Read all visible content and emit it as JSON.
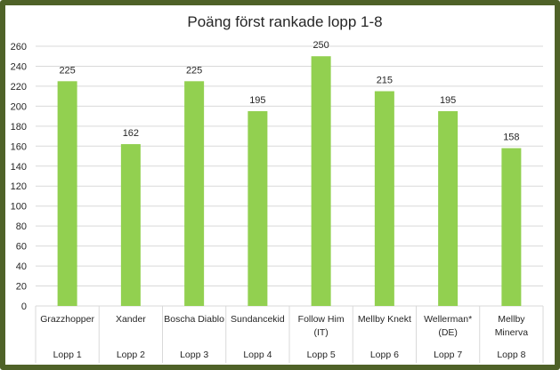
{
  "chart_data": {
    "type": "bar",
    "title": "Poäng först rankade lopp 1-8",
    "categories": [
      {
        "name": [
          "Grazzhopper"
        ],
        "group": "Lopp 1"
      },
      {
        "name": [
          "Xander"
        ],
        "group": "Lopp 2"
      },
      {
        "name": [
          "Boscha Diablo"
        ],
        "group": "Lopp 3"
      },
      {
        "name": [
          "Sundancekid"
        ],
        "group": "Lopp 4"
      },
      {
        "name": [
          "Follow Him",
          "(IT)"
        ],
        "group": "Lopp 5"
      },
      {
        "name": [
          "Mellby Knekt"
        ],
        "group": "Lopp 6"
      },
      {
        "name": [
          "Wellerman*",
          "(DE)"
        ],
        "group": "Lopp 7"
      },
      {
        "name": [
          "Mellby",
          "Minerva"
        ],
        "group": "Lopp 8"
      }
    ],
    "values": [
      225,
      162,
      225,
      195,
      250,
      215,
      195,
      158
    ],
    "ylim": [
      0,
      260
    ],
    "yticks": [
      0,
      20,
      40,
      60,
      80,
      100,
      120,
      140,
      160,
      180,
      200,
      220,
      240,
      260
    ],
    "grid": true,
    "legend": "none",
    "xlabel": "",
    "ylabel": "",
    "colors": {
      "bar": "#92d050",
      "frame": "#4f6228",
      "grid": "#d9d9d9"
    }
  }
}
